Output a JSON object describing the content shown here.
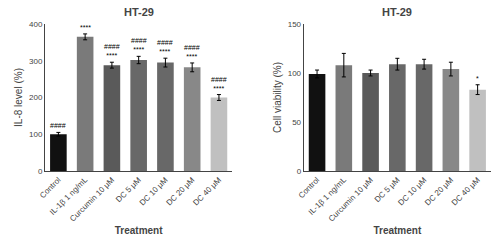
{
  "chart_data": [
    {
      "type": "bar",
      "title": "HT-29",
      "xlabel": "Treatment",
      "ylabel": "IL-8 level (%)",
      "categories": [
        "Control",
        "IL-1β 1 ng/mL",
        "Curcumin 10 μM",
        "DC 5 μM",
        "DC 10 μM",
        "DC 20 μM",
        "DC 40 μM"
      ],
      "values": [
        100,
        365,
        288,
        302,
        295,
        282,
        200
      ],
      "errors": [
        5,
        8,
        8,
        10,
        12,
        12,
        8
      ],
      "colors": [
        "#111111",
        "#7a7a7a",
        "#5a5a5a",
        "#686868",
        "#686868",
        "#888888",
        "#c0c0c0"
      ],
      "ylim": [
        0,
        400
      ],
      "yticks": [
        0,
        100,
        200,
        300,
        400
      ],
      "grid": false,
      "annotations": [
        {
          "category": "Control",
          "texts": [
            "####"
          ]
        },
        {
          "category": "IL-1β 1 ng/mL",
          "texts": [
            "****"
          ]
        },
        {
          "category": "Curcumin 10 μM",
          "texts": [
            "####",
            "****"
          ]
        },
        {
          "category": "DC 5 μM",
          "texts": [
            "####",
            "****"
          ]
        },
        {
          "category": "DC 10 μM",
          "texts": [
            "####",
            "****"
          ]
        },
        {
          "category": "DC 20 μM",
          "texts": [
            "####",
            "****"
          ]
        },
        {
          "category": "DC 40 μM",
          "texts": [
            "####",
            "****"
          ]
        }
      ]
    },
    {
      "type": "bar",
      "title": "HT-29",
      "xlabel": "Treatment",
      "ylabel": "Cell viability (%)",
      "categories": [
        "Control",
        "IL-1β 1 ng/mL",
        "Curcumin 10 μM",
        "DC 5 μM",
        "DC 10 μM",
        "DC 20 μM",
        "DC 40 μM"
      ],
      "values": [
        99,
        108,
        100,
        109,
        109,
        104,
        83
      ],
      "errors": [
        4,
        12,
        3,
        6,
        5,
        7,
        5
      ],
      "colors": [
        "#111111",
        "#7a7a7a",
        "#5a5a5a",
        "#686868",
        "#686868",
        "#888888",
        "#c0c0c0"
      ],
      "ylim": [
        0,
        150
      ],
      "yticks": [
        0,
        50,
        100,
        150
      ],
      "grid": false,
      "annotations": [
        {
          "category": "DC 40 μM",
          "texts": [
            "*"
          ]
        }
      ]
    }
  ]
}
